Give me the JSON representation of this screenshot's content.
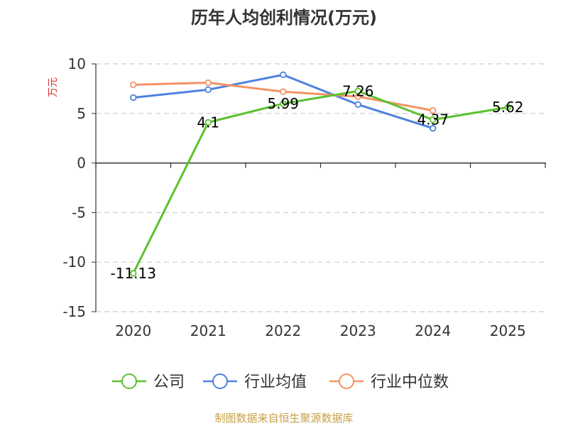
{
  "chart_data": {
    "type": "line",
    "title": "历年人均创利情况(万元)",
    "xlabel": "",
    "ylabel": "万元",
    "categories": [
      "2020",
      "2021",
      "2022",
      "2023",
      "2024",
      "2025"
    ],
    "ylim": [
      -15,
      10
    ],
    "yticks": [
      10,
      5,
      0,
      -5,
      -10,
      -15
    ],
    "grid": true,
    "legend_position": "bottom",
    "series": [
      {
        "name": "公司",
        "color": "#5cc12f",
        "values": [
          -11.13,
          4.1,
          5.99,
          7.26,
          4.37,
          5.62
        ],
        "data_labels": [
          "-11.13",
          "4.1",
          "5.99",
          "7.26",
          "4.37",
          "5.62"
        ]
      },
      {
        "name": "行业均值",
        "color": "#4f81e0",
        "values": [
          6.6,
          7.4,
          8.9,
          5.9,
          3.5,
          null
        ]
      },
      {
        "name": "行业中位数",
        "color": "#f59363",
        "values": [
          7.9,
          8.1,
          7.2,
          6.7,
          5.3,
          null
        ]
      }
    ]
  },
  "source": {
    "text": "制图数据来自恒生聚源数据库",
    "color": "#c8a045"
  },
  "colors": {
    "axis": "#333333",
    "grid": "#cccccc",
    "ylabel": "#e03030"
  }
}
